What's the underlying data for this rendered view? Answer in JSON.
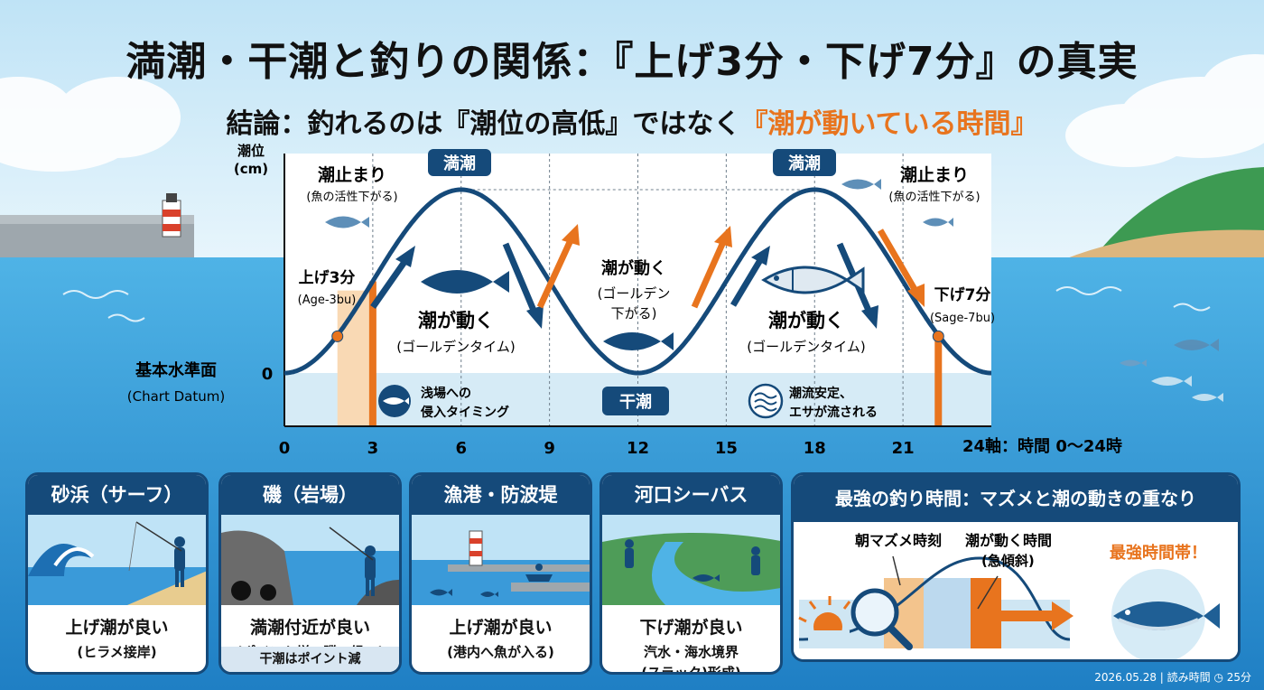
{
  "title": "満潮・干潮と釣りの関係：『上げ3分・下げ7分』の真実",
  "subtitle": {
    "prefix": "結論：釣れるのは『潮位の高低』ではなく",
    "highlight": "『潮が動いている時間』"
  },
  "chart_data": {
    "type": "line",
    "title": "",
    "xlabel": "24軸：時間 0〜24時",
    "ylabel": "潮位\n(cm)",
    "x_ticks": [
      0,
      3,
      6,
      9,
      12,
      15,
      18,
      21
    ],
    "xlim": [
      0,
      24
    ],
    "ylim": [
      0,
      1
    ],
    "y_zero_label": "0",
    "series": [
      {
        "name": "",
        "x": [
          0,
          1,
          2,
          3,
          4,
          5,
          6,
          7,
          8,
          9,
          10,
          11,
          12,
          13,
          14,
          15,
          16,
          17,
          18,
          19,
          20,
          21,
          22,
          23,
          24
        ],
        "y": [
          0.0,
          0.067,
          0.25,
          0.5,
          0.75,
          0.933,
          1.0,
          0.933,
          0.75,
          0.5,
          0.25,
          0.067,
          0.0,
          0.067,
          0.25,
          0.5,
          0.75,
          0.933,
          1.0,
          0.933,
          0.75,
          0.5,
          0.25,
          0.067,
          0.0
        ]
      }
    ],
    "datum_label": "基本水準面",
    "datum_sub": "(Chart Datum)",
    "annotations": {
      "high_tide": "満潮",
      "low_tide": "干潮",
      "slack_left": "潮止まり",
      "slack_left_sub": "(魚の活性下がる)",
      "slack_right": "潮止まり",
      "slack_right_sub": "(魚の活性下がる)",
      "age3": "上げ3分",
      "age3_sub": "(Age-3bu)",
      "sage7": "下げ7分",
      "sage7_sub": "(Sage-7bu)",
      "moving_left": "潮が動く",
      "moving_left_sub": "(ゴールデンタイム)",
      "moving_right": "潮が動く",
      "moving_right_sub": "(ゴールデンタイム)",
      "moving_mid_1": "潮が動く",
      "moving_mid_2": "(ゴールデン",
      "moving_mid_3": "下がる)",
      "shallow_1": "浅場への",
      "shallow_2": "侵入タイミング",
      "stable_1": "潮流安定、",
      "stable_2": "エサが流される"
    }
  },
  "cards": [
    {
      "head": "砂浜（サーフ）",
      "main": "上げ潮が良い",
      "sub": "(ヒラメ接岸)"
    },
    {
      "head": "磯（岩場）",
      "main": "満潮付近が良い",
      "sub": "(ポイント増、磯の縁へ)",
      "note": "干潮はポイント減"
    },
    {
      "head": "漁港・防波堤",
      "main": "上げ潮が良い",
      "sub": "(港内へ魚が入る)"
    },
    {
      "head": "河口シーバス",
      "main": "下げ潮が良い",
      "sub": "汽水・海水境界",
      "sub2": "(スラック)形成)"
    }
  ],
  "strong": {
    "head": "最強の釣り時間：マズメと潮の動きの重なり",
    "label_morning": "朝マズメ時刻",
    "label_moving": "潮が動く時間",
    "label_moving_sub": "(急傾斜)",
    "label_best": "最強時間帯！"
  },
  "footer": "2026.05.28 | 読み時間 ◷ 25分",
  "colors": {
    "navy": "#154a7a",
    "orange": "#e8741e",
    "sea": "#3aa3dc",
    "sky": "#cfe9f7"
  }
}
